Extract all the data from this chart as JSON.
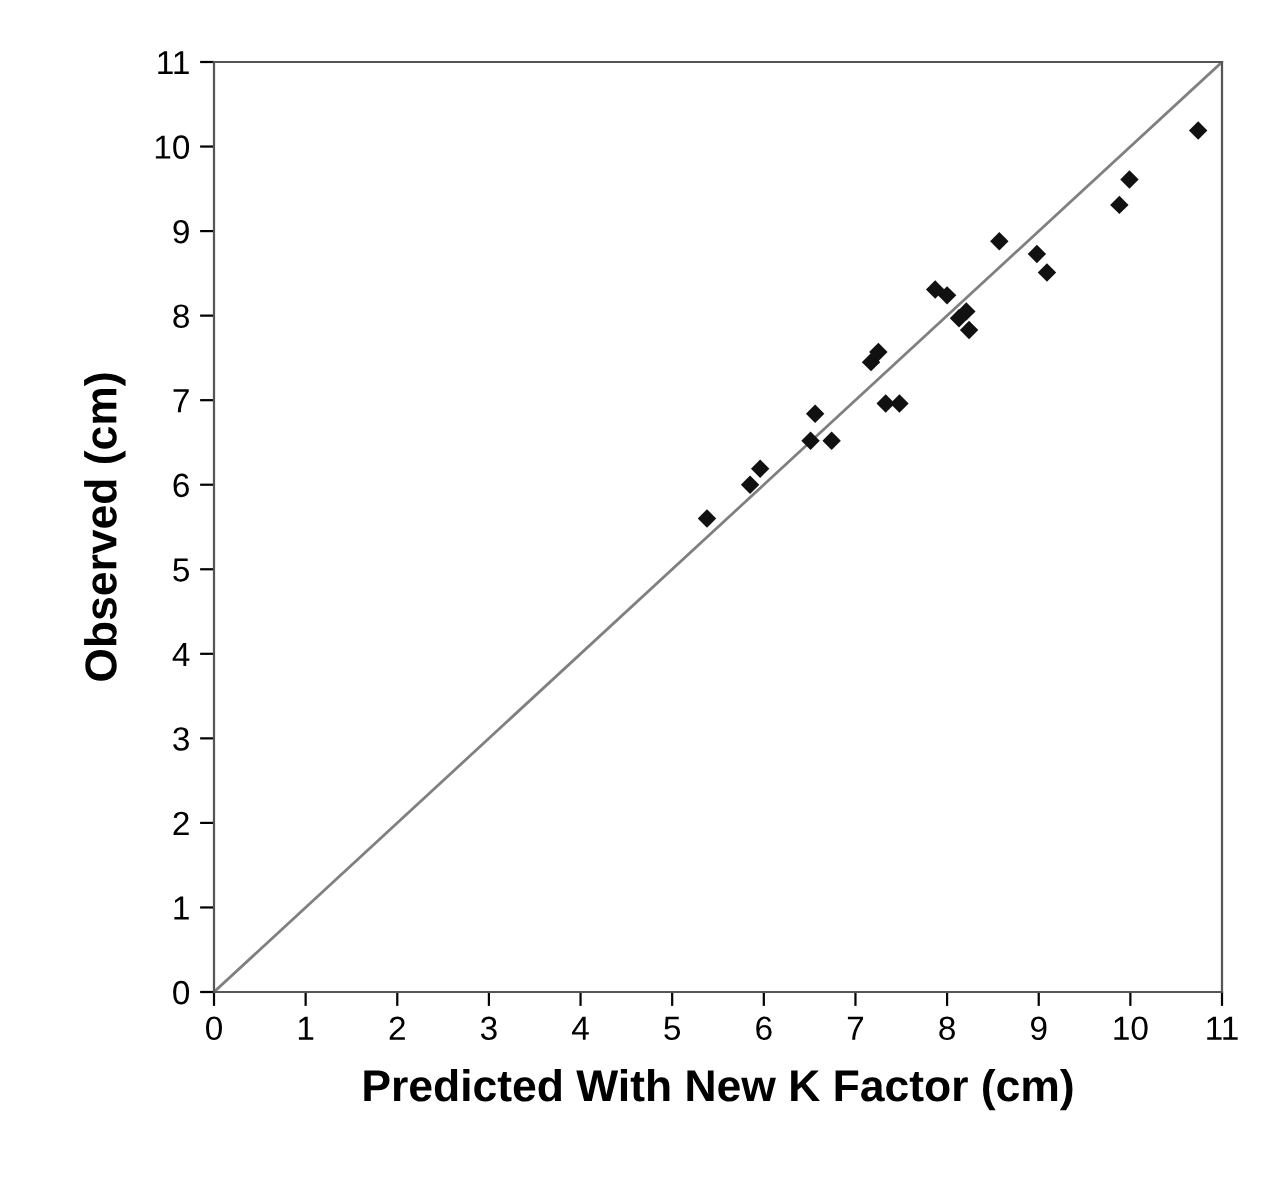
{
  "chart_data": {
    "type": "scatter",
    "xlabel": "Predicted With New K Factor (cm)",
    "ylabel": "Observed (cm)",
    "xlim": [
      0,
      11
    ],
    "ylim": [
      0,
      11
    ],
    "xticks": [
      0,
      1,
      2,
      3,
      4,
      5,
      6,
      7,
      8,
      9,
      10,
      11
    ],
    "yticks": [
      0,
      1,
      2,
      3,
      4,
      5,
      6,
      7,
      8,
      9,
      10,
      11
    ],
    "grid": false,
    "legend": false,
    "series": [
      {
        "marker": "diamond",
        "color": "#111111",
        "x": [
          5.38,
          5.85,
          5.96,
          6.51,
          6.56,
          6.74,
          7.17,
          7.25,
          7.33,
          7.48,
          7.87,
          8.0,
          8.13,
          8.21,
          8.24,
          8.57,
          8.98,
          9.09,
          9.88,
          9.99,
          10.74
        ],
        "values": [
          5.6,
          6.0,
          6.19,
          6.52,
          6.84,
          6.52,
          7.45,
          7.57,
          6.96,
          6.96,
          8.31,
          8.24,
          7.97,
          8.05,
          7.83,
          8.88,
          8.73,
          8.51,
          9.31,
          9.61,
          10.19
        ]
      },
      {
        "type": "line",
        "marker": "none",
        "color": "#808080",
        "x": [
          0,
          11
        ],
        "values": [
          0,
          11
        ]
      }
    ]
  }
}
